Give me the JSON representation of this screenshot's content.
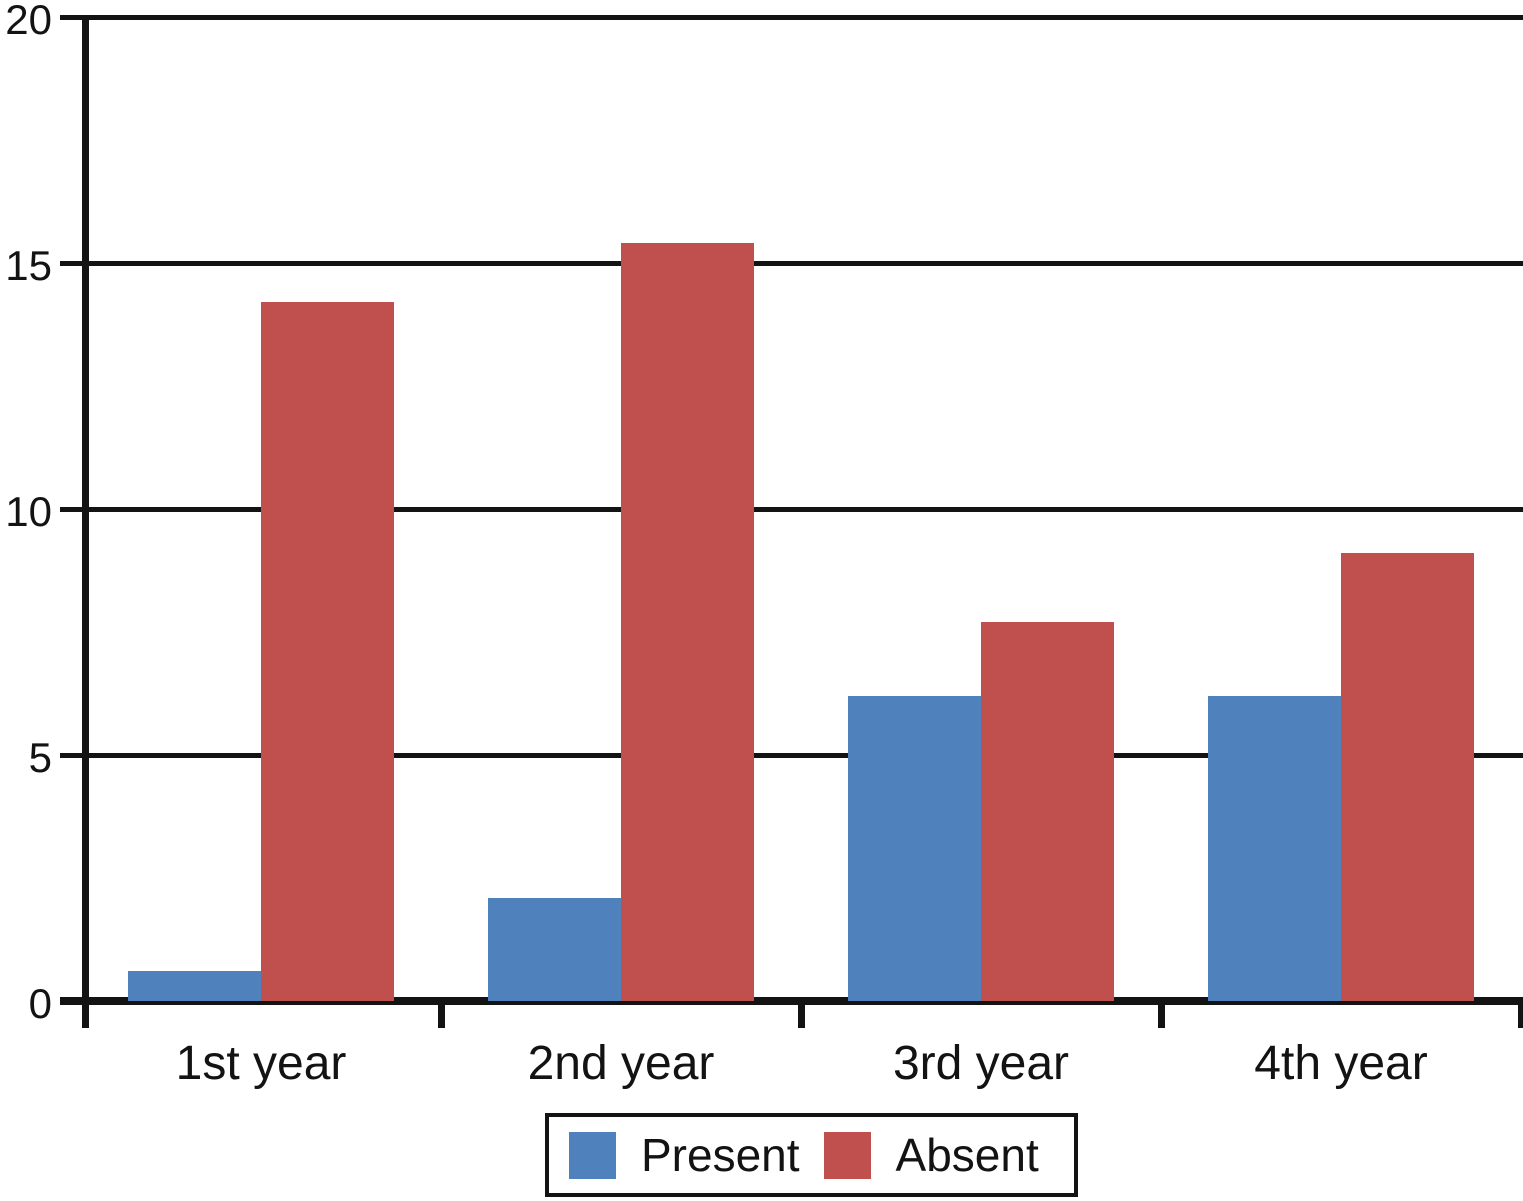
{
  "chart_data": {
    "type": "bar",
    "title": "",
    "xlabel": "",
    "ylabel": "",
    "categories": [
      "1st year",
      "2nd year",
      "3rd year",
      "4th year"
    ],
    "series": [
      {
        "name": "Present",
        "color": "#4f81bd",
        "values": [
          0.6,
          2.1,
          6.2,
          6.2
        ]
      },
      {
        "name": "Absent",
        "color": "#c0504d",
        "values": [
          14.2,
          15.4,
          7.7,
          9.1
        ]
      }
    ],
    "ylim": [
      0,
      20
    ],
    "yticks": [
      0,
      5,
      10,
      15,
      20
    ],
    "grid": true,
    "gridline_color": "#131313",
    "axis_color": "#131313",
    "background": "#ffffff",
    "legend_position": "bottom"
  }
}
